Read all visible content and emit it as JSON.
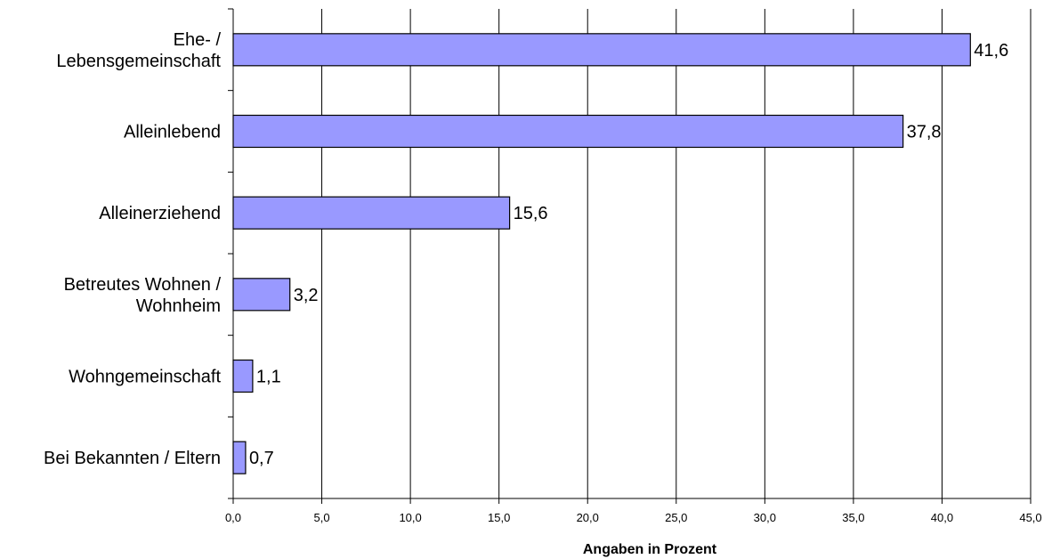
{
  "chart_data": {
    "type": "bar",
    "orientation": "horizontal",
    "categories": [
      "Ehe- / Lebensgemeinschaft",
      "Alleinlebend",
      "Alleinerziehend",
      "Betreutes Wohnen / Wohnheim",
      "Wohngemeinschaft",
      "Bei Bekannten / Eltern"
    ],
    "category_lines": [
      [
        "Ehe- /",
        "Lebensgemeinschaft"
      ],
      [
        "Alleinlebend"
      ],
      [
        "Alleinerziehend"
      ],
      [
        "Betreutes Wohnen /",
        "Wohnheim"
      ],
      [
        "Wohngemeinschaft"
      ],
      [
        "Bei Bekannten / Eltern"
      ]
    ],
    "values": [
      41.6,
      37.8,
      15.6,
      3.2,
      1.1,
      0.7
    ],
    "value_labels": [
      "41,6",
      "37,8",
      "15,6",
      "3,2",
      "1,1",
      "0,7"
    ],
    "xlabel": "Angaben in Prozent",
    "xlim": [
      0,
      45
    ],
    "xticks": [
      0,
      5,
      10,
      15,
      20,
      25,
      30,
      35,
      40,
      45
    ],
    "xtick_labels": [
      "0,0",
      "5,0",
      "10,0",
      "15,0",
      "20,0",
      "25,0",
      "30,0",
      "35,0",
      "40,0",
      "45,0"
    ],
    "grid": "vertical",
    "legend": "none",
    "colors": {
      "bar_fill": "#9999ff",
      "bar_stroke": "#000000",
      "grid": "#000000"
    }
  }
}
